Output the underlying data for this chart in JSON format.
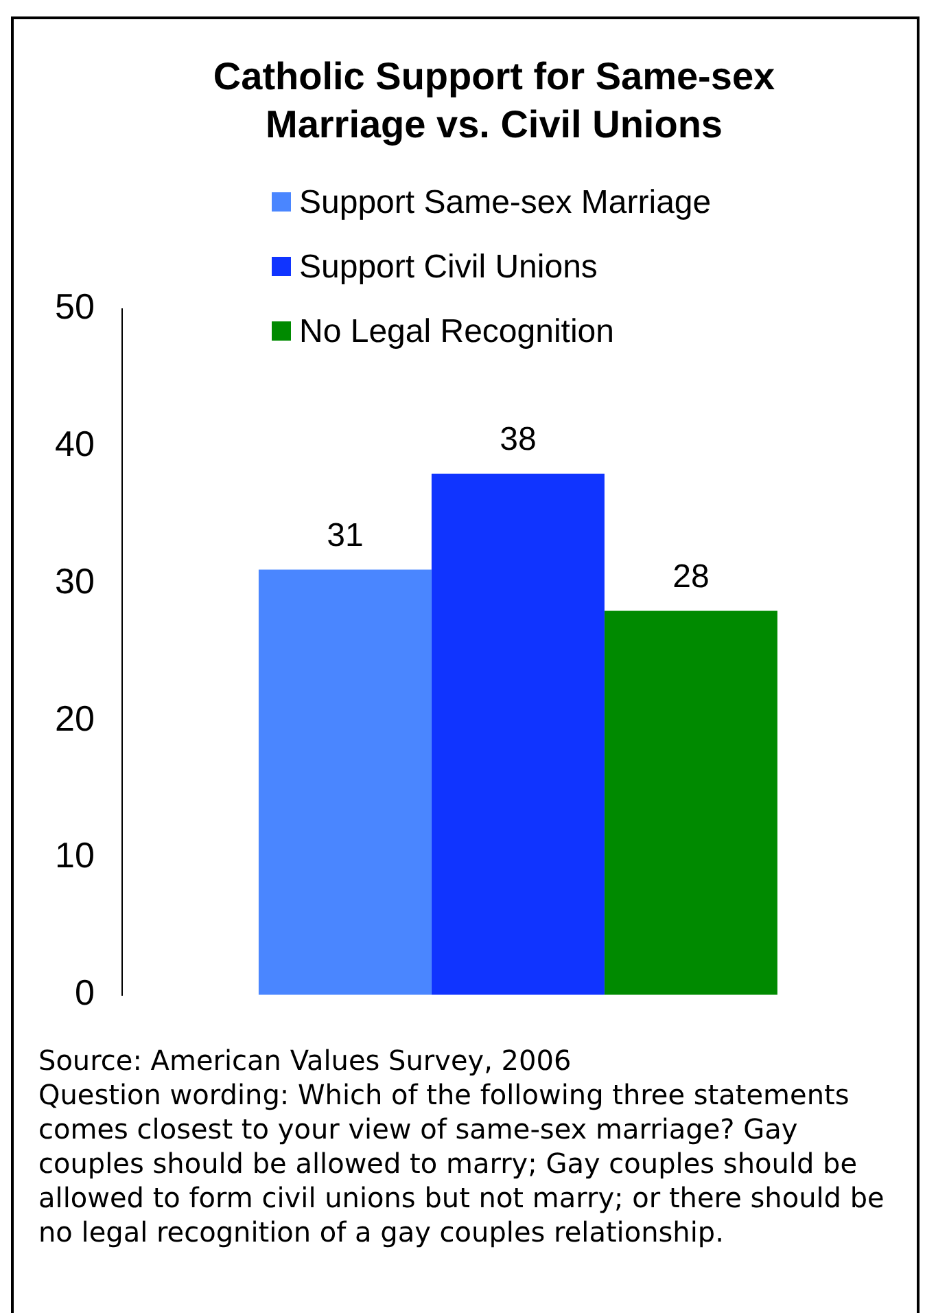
{
  "chart_data": {
    "type": "bar",
    "title": "Catholic Support for Same-sex Marriage vs. Civil Unions",
    "categories": [
      null
    ],
    "series": [
      {
        "name": "Support Same-sex Marriage",
        "color": "#4a86ff",
        "values": [
          31
        ]
      },
      {
        "name": "Support Civil Unions",
        "color": "#1034ff",
        "values": [
          38
        ]
      },
      {
        "name": "No Legal Recognition",
        "color": "#008a00",
        "values": [
          28
        ]
      }
    ],
    "ylim": [
      0,
      50
    ],
    "yticks": [
      0,
      10,
      20,
      30,
      40,
      50
    ],
    "grid": false,
    "legend": "top",
    "data_labels": true,
    "annotations": [
      "Source: American Values Survey, 2006",
      "Question wording:  Which of the following three statements comes closest to your view of same-sex marriage? Gay couples should be allowed to marry; Gay couples should be allowed to form civil unions but not marry; or there should be no legal recognition of a gay couples relationship."
    ]
  }
}
